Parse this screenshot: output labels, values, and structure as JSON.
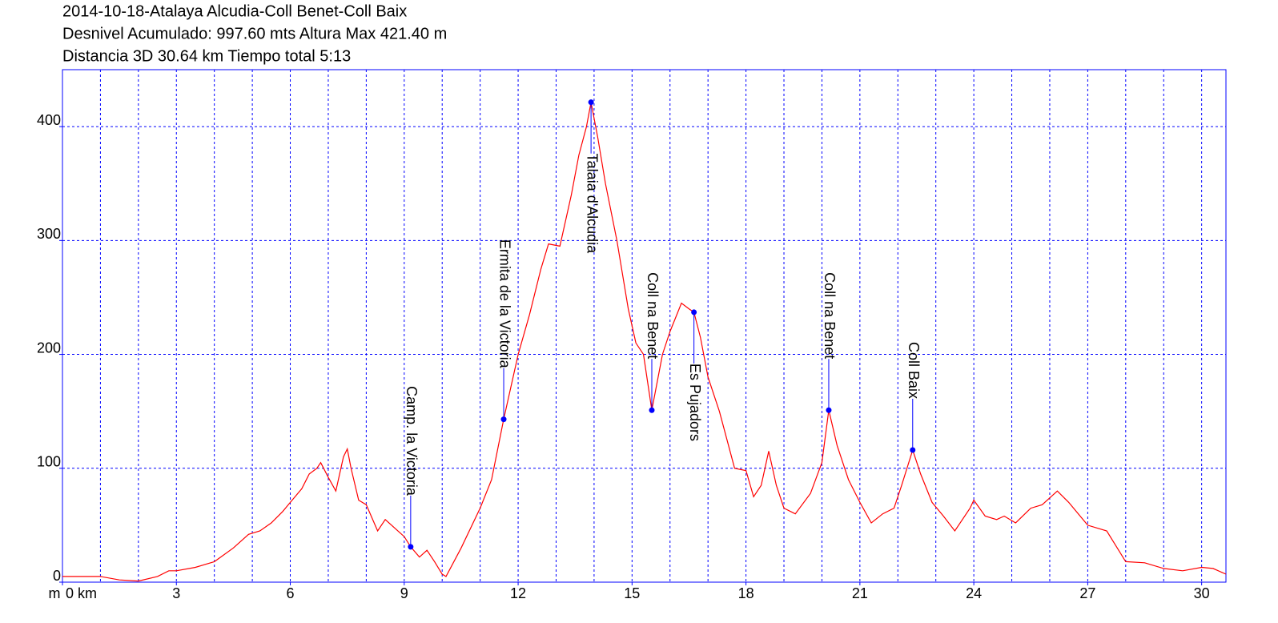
{
  "chart_data": {
    "type": "line",
    "title_lines": [
      "2014-10-18-Atalaya Alcudia-Coll Benet-Coll Baix",
      "Desnivel Acumulado: 997.60 mts  Altura Max 421.40 m",
      "Distancia 3D 30.64 km  Tiempo total 5:13"
    ],
    "y_label": "m",
    "color": "#ff0000",
    "grid_color": "#0000ff",
    "xlim": [
      0,
      30.64
    ],
    "ylim": [
      0,
      450
    ],
    "xticks": [
      {
        "value": 0,
        "label": "0 km"
      },
      3,
      6,
      9,
      12,
      15,
      18,
      21,
      24,
      27,
      30
    ],
    "xminorticks": [
      1,
      2,
      4,
      5,
      7,
      8,
      10,
      11,
      13,
      14,
      16,
      17,
      19,
      20,
      22,
      23,
      25,
      26,
      28,
      29
    ],
    "yticks": [
      0,
      100,
      200,
      300,
      400
    ],
    "grid": true,
    "x": [
      0,
      1,
      1.5,
      2,
      2.5,
      2.8,
      3,
      3.5,
      4,
      4.5,
      4.9,
      5.2,
      5.5,
      5.8,
      6,
      6.3,
      6.5,
      6.7,
      6.8,
      7,
      7.2,
      7.4,
      7.5,
      7.6,
      7.8,
      8,
      8.3,
      8.5,
      8.8,
      9,
      9.17,
      9.4,
      9.6,
      9.8,
      10.0,
      10.1,
      10.5,
      11,
      11.3,
      11.62,
      12,
      12.3,
      12.6,
      12.8,
      13.1,
      13.4,
      13.6,
      13.8,
      13.92,
      14.1,
      14.3,
      14.6,
      14.9,
      15.1,
      15.3,
      15.52,
      15.8,
      16.0,
      16.3,
      16.5,
      16.63,
      16.8,
      17.0,
      17.3,
      17.7,
      18.0,
      18.2,
      18.4,
      18.6,
      18.8,
      19.0,
      19.3,
      19.7,
      20.0,
      20.18,
      20.4,
      20.7,
      21.0,
      21.3,
      21.6,
      21.9,
      22.1,
      22.39,
      22.6,
      22.9,
      23.2,
      23.5,
      23.9,
      24.0,
      24.3,
      24.6,
      24.8,
      25.1,
      25.5,
      25.8,
      26.2,
      26.5,
      27.0,
      27.5,
      28.0,
      28.5,
      29,
      29.5,
      30,
      30.3,
      30.64
    ],
    "values": [
      5,
      5,
      2,
      1,
      5,
      10,
      10,
      13,
      18,
      30,
      42,
      45,
      52,
      62,
      70,
      82,
      95,
      100,
      105,
      92,
      80,
      110,
      117,
      100,
      72,
      68,
      45,
      55,
      46,
      40,
      31,
      22,
      28,
      18,
      7,
      5,
      30,
      65,
      90,
      143,
      200,
      235,
      275,
      297,
      295,
      340,
      375,
      400,
      421.4,
      390,
      350,
      300,
      240,
      210,
      200,
      151,
      200,
      220,
      245,
      240,
      237,
      215,
      180,
      150,
      100,
      98,
      75,
      85,
      115,
      85,
      65,
      60,
      78,
      105,
      151,
      120,
      90,
      70,
      52,
      60,
      65,
      85,
      116,
      95,
      70,
      58,
      45,
      65,
      72,
      58,
      55,
      58,
      52,
      65,
      68,
      80,
      70,
      50,
      45,
      18,
      17,
      12,
      10,
      13,
      12,
      7
    ],
    "waypoint_color": "#0000ff",
    "waypoints": [
      {
        "label": "Camp. la Victoria",
        "x": 9.17,
        "y": 31
      },
      {
        "label": "Ermita de la Victoria",
        "x": 11.62,
        "y": 143
      },
      {
        "label": "Talaia d'Alcudia",
        "x": 13.92,
        "y": 421.4
      },
      {
        "label": "Coll na Benet",
        "x": 15.52,
        "y": 151
      },
      {
        "label": "Es Pujadors",
        "x": 16.63,
        "y": 237
      },
      {
        "label": "Coll na Benet",
        "x": 20.18,
        "y": 151
      },
      {
        "label": "Coll Baix",
        "x": 22.39,
        "y": 116
      }
    ]
  }
}
